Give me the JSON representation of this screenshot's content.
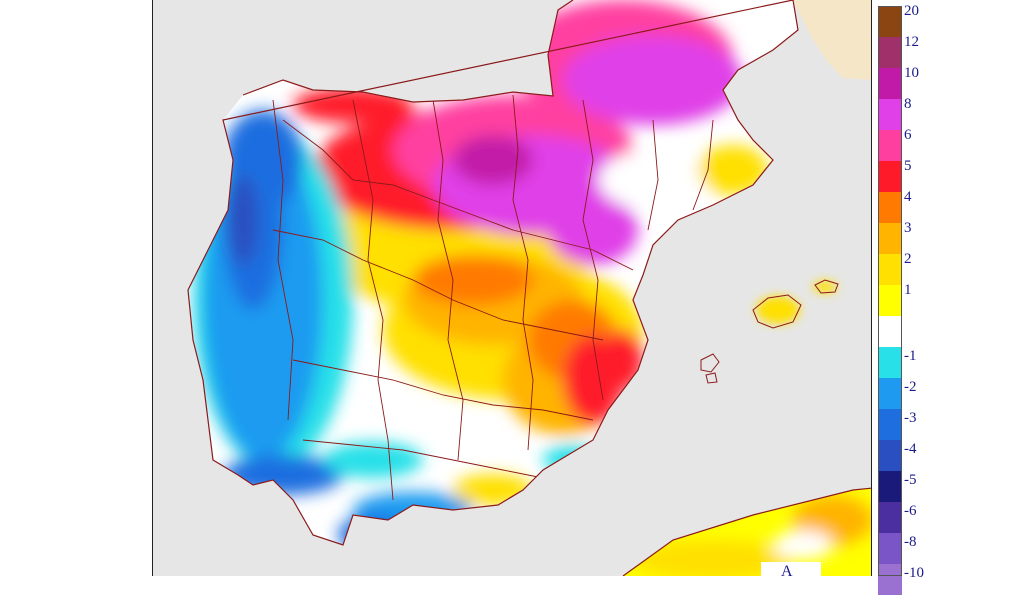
{
  "legend": {
    "positive": [
      {
        "label": "20",
        "color": "#8b4513"
      },
      {
        "label": "12",
        "color": "#a0306a"
      },
      {
        "label": "10",
        "color": "#c21aa8"
      },
      {
        "label": "8",
        "color": "#e040e8"
      },
      {
        "label": "6",
        "color": "#ff3fa0"
      },
      {
        "label": "5",
        "color": "#ff1a2a"
      },
      {
        "label": "4",
        "color": "#ff7a00"
      },
      {
        "label": "3",
        "color": "#ffb400"
      },
      {
        "label": "2",
        "color": "#ffe000"
      },
      {
        "label": "1",
        "color": "#ffff00"
      }
    ],
    "neutral_color": "#ffffff",
    "negative": [
      {
        "label": "-1",
        "color": "#28e0e8"
      },
      {
        "label": "-2",
        "color": "#1e9bf0"
      },
      {
        "label": "-3",
        "color": "#1e6ee0"
      },
      {
        "label": "-4",
        "color": "#2a4fc0"
      },
      {
        "label": "-5",
        "color": "#1a1a7a"
      },
      {
        "label": "-6",
        "color": "#4b2fa0"
      },
      {
        "label": "-8",
        "color": "#7a55c8"
      },
      {
        "label": "-10",
        "color": "#9a70d0"
      }
    ]
  },
  "map": {
    "sea_color": "#e6e6e6",
    "france_color": "#f5e6c8",
    "border_color": "#8b1a1a",
    "logo_text": "A"
  }
}
